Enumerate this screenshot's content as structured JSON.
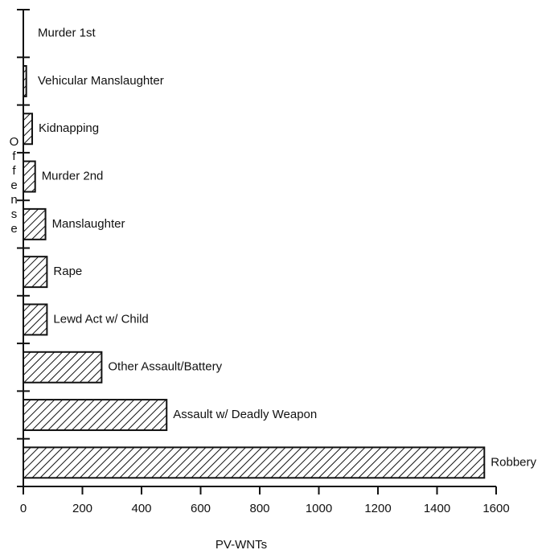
{
  "chart_data": {
    "type": "hbar",
    "categories": [
      "Murder 1st",
      "Vehicular Manslaughter",
      "Kidnapping",
      "Murder 2nd",
      "Manslaughter",
      "Rape",
      "Lewd Act w/ Child",
      "Other Assault/Battery",
      "Assault w/ Deadly Weapon",
      "Robbery"
    ],
    "values": [
      0,
      10,
      30,
      40,
      75,
      80,
      80,
      265,
      485,
      1560
    ],
    "xlim": [
      0,
      1600
    ],
    "xticks": [
      0,
      200,
      400,
      600,
      800,
      1000,
      1200,
      1400,
      1600
    ],
    "xlabel": "PV-WNTs",
    "ylabel": "Offense",
    "color": "#111111",
    "hatch": true
  }
}
